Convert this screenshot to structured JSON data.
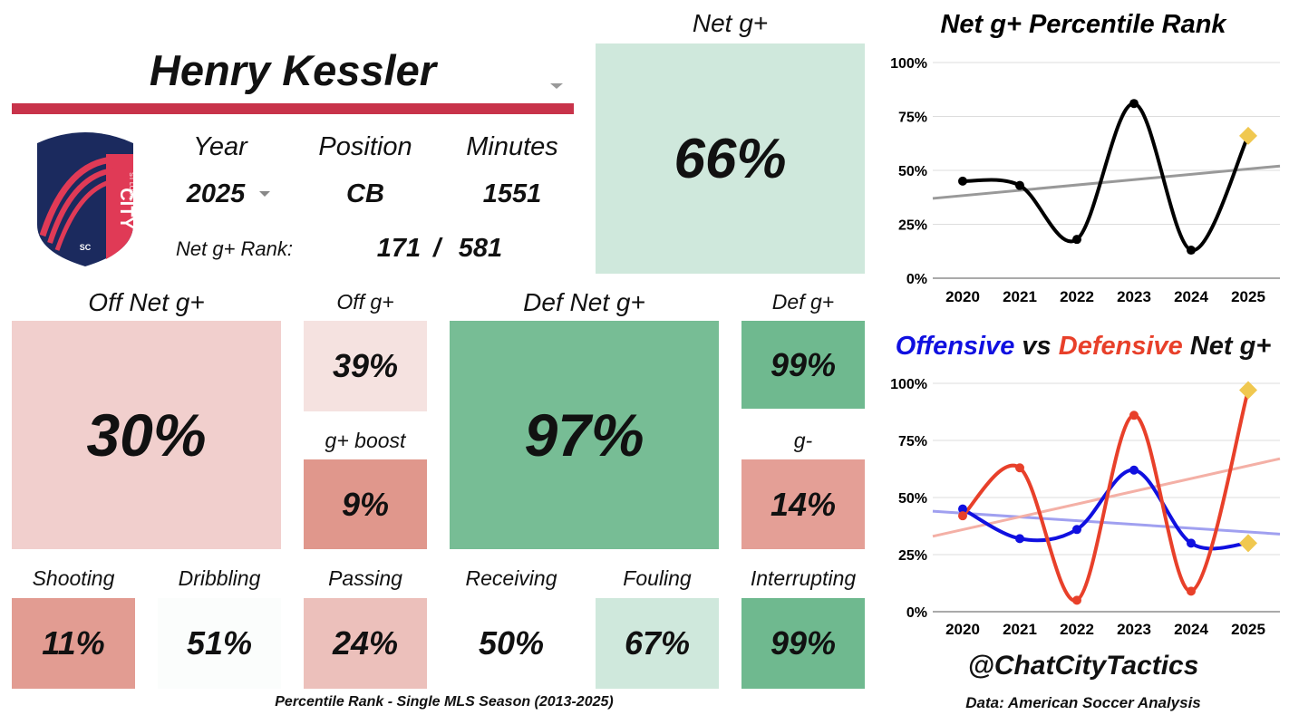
{
  "player": {
    "name": "Henry Kessler"
  },
  "team_logo": {
    "top_text": "ST LOUIS",
    "main_text": "CITY",
    "bottom_text": "SC"
  },
  "info": {
    "year_label": "Year",
    "year_value": "2025",
    "position_label": "Position",
    "position_value": "CB",
    "minutes_label": "Minutes",
    "minutes_value": "1551",
    "rank_label": "Net g+ Rank:",
    "rank_value": "171",
    "rank_sep": "/",
    "rank_total": "581"
  },
  "net": {
    "label": "Net g+",
    "value": "66%",
    "color": "#cfe8dc"
  },
  "off_net": {
    "label": "Off Net g+",
    "value": "30%",
    "color": "#f1cfcd"
  },
  "off_g": {
    "label": "Off g+",
    "value": "39%",
    "color": "#f5e2e0"
  },
  "g_boost": {
    "label": "g+ boost",
    "value": "9%",
    "color": "#e0978c"
  },
  "def_net": {
    "label": "Def Net g+",
    "value": "97%",
    "color": "#77bd95"
  },
  "def_g": {
    "label": "Def g+",
    "value": "99%",
    "color": "#6fb98f"
  },
  "g_minus": {
    "label": "g-",
    "value": "14%",
    "color": "#e49f96"
  },
  "actions": [
    {
      "label": "Shooting",
      "value": "11%",
      "color": "#e29c92"
    },
    {
      "label": "Dribbling",
      "value": "51%",
      "color": "#fbfdfc"
    },
    {
      "label": "Passing",
      "value": "24%",
      "color": "#ecc0bb"
    },
    {
      "label": "Receiving",
      "value": "50%",
      "color": "#ffffff"
    },
    {
      "label": "Fouling",
      "value": "67%",
      "color": "#cfe8dc"
    },
    {
      "label": "Interrupting",
      "value": "99%",
      "color": "#6fb98f"
    }
  ],
  "footer": {
    "note": "Percentile Rank - Single MLS Season (2013-2025)",
    "handle": "@ChatCityTactics",
    "source": "Data: American Soccer Analysis"
  },
  "chart_data": [
    {
      "type": "line",
      "title": "Net g+ Percentile Rank",
      "x": [
        "2020",
        "2021",
        "2022",
        "2023",
        "2024",
        "2025"
      ],
      "series": [
        {
          "values": [
            45,
            43,
            18,
            81,
            13,
            66
          ],
          "color": "#000000"
        }
      ],
      "trendline": {
        "start": 37,
        "end": 52,
        "color": "#999999"
      },
      "ylim": [
        0,
        100
      ],
      "yticks": [
        "0%",
        "25%",
        "50%",
        "75%",
        "100%"
      ],
      "highlight_last": {
        "color": "#f0c850"
      }
    },
    {
      "type": "line",
      "title_parts": [
        "Offensive",
        " vs ",
        "Defensive",
        " Net g+"
      ],
      "x": [
        "2020",
        "2021",
        "2022",
        "2023",
        "2024",
        "2025"
      ],
      "series": [
        {
          "name": "Offensive",
          "values": [
            45,
            32,
            36,
            62,
            30,
            30
          ],
          "color": "#1010e0"
        },
        {
          "name": "Defensive",
          "values": [
            42,
            63,
            5,
            86,
            9,
            97
          ],
          "color": "#e8402a"
        }
      ],
      "trendlines": [
        {
          "start": 44,
          "end": 34,
          "color": "#a0a0f0"
        },
        {
          "start": 33,
          "end": 67,
          "color": "#f4b0a6"
        }
      ],
      "ylim": [
        0,
        100
      ],
      "yticks": [
        "0%",
        "25%",
        "50%",
        "75%",
        "100%"
      ],
      "highlight_last": {
        "color": "#f0c850"
      }
    }
  ]
}
